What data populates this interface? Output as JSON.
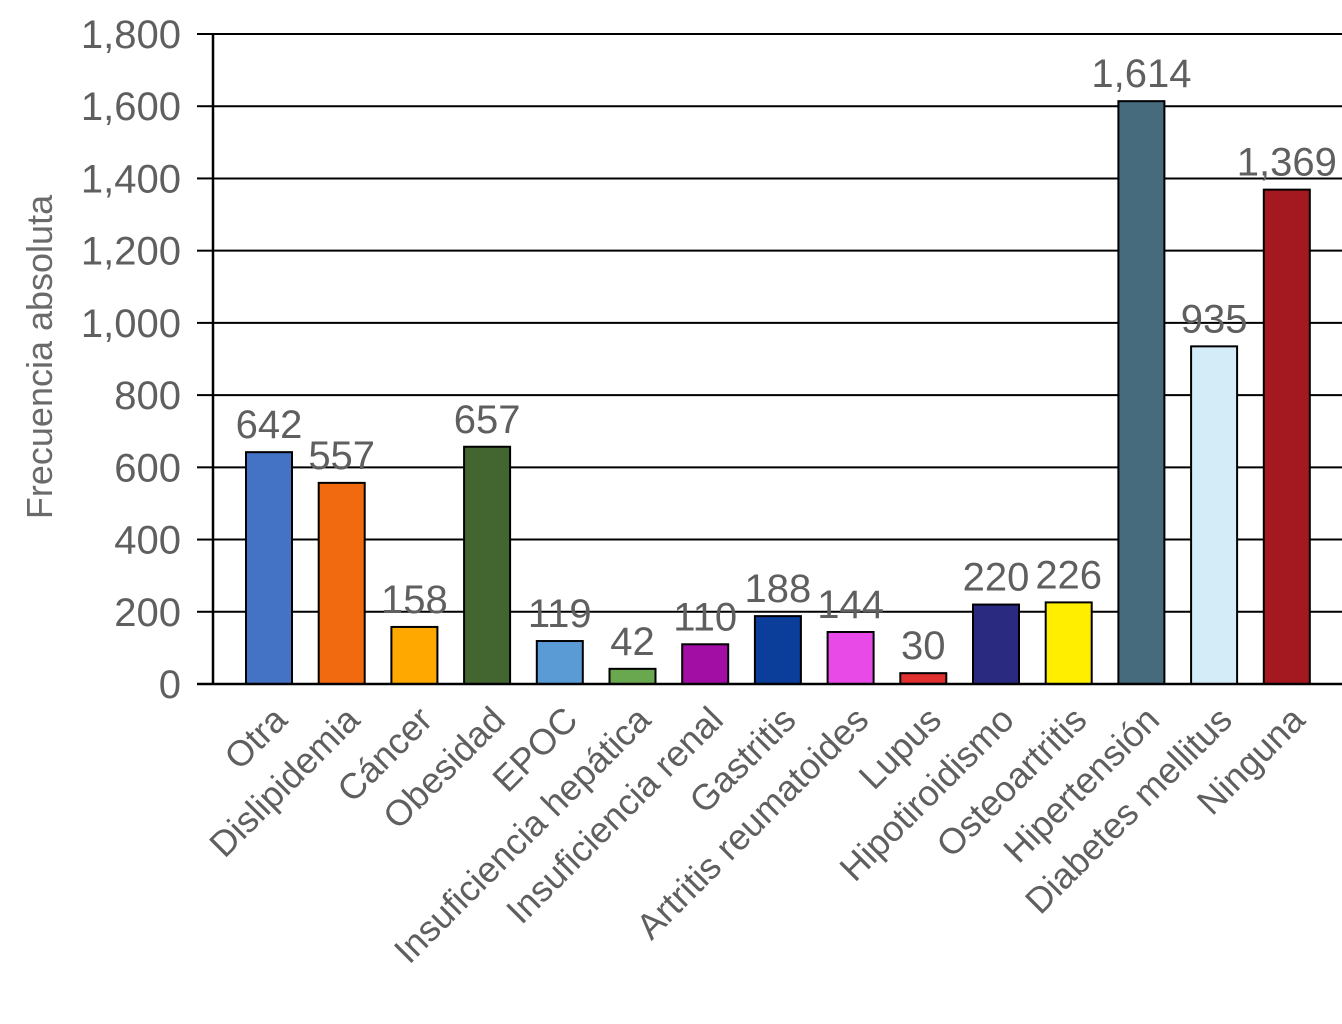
{
  "chart_data": {
    "type": "bar",
    "title": "",
    "xlabel": "",
    "ylabel": "Frecuencia absoluta",
    "ylim": [
      0,
      1800
    ],
    "ytick_step": 200,
    "yticks": [
      "0",
      "200",
      "400",
      "600",
      "800",
      "1,000",
      "1,200",
      "1,400",
      "1,600",
      "1,800"
    ],
    "grid": "horizontal",
    "categories": [
      "Otra",
      "Dislipidemia",
      "Cáncer",
      "Obesidad",
      "EPOC",
      "Insuficiencia hepática",
      "Insuficiencia renal",
      "Gastritis",
      "Artritis reumatoides",
      "Lupus",
      "Hipotiroidismo",
      "Osteoartritis",
      "Hipertensión",
      "Diabetes mellitus",
      "Ninguna"
    ],
    "values": [
      642,
      557,
      158,
      657,
      119,
      42,
      110,
      188,
      144,
      30,
      220,
      226,
      1614,
      935,
      1369
    ],
    "value_labels": [
      "642",
      "557",
      "158",
      "657",
      "119",
      "42",
      "110",
      "188",
      "144",
      "30",
      "220",
      "226",
      "1,614",
      "935",
      "1,369"
    ],
    "colors": [
      "#4472c4",
      "#f26a10",
      "#ffa800",
      "#436630",
      "#5b9bd5",
      "#6aa84f",
      "#a20ea3",
      "#0b3d9a",
      "#e84ae8",
      "#e03030",
      "#2a2a80",
      "#ffee00",
      "#456b7d",
      "#d4ecf8",
      "#a3191f"
    ]
  }
}
